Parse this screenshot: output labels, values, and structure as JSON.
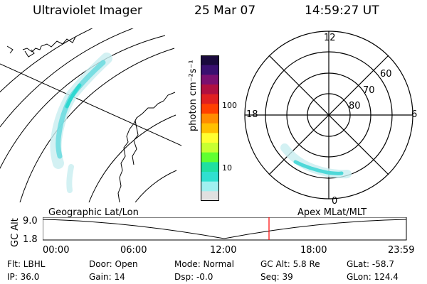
{
  "header": {
    "title": "Ultraviolet Imager",
    "date": "25 Mar 07",
    "time": "14:59:27 UT"
  },
  "colorbar": {
    "label": "photon cm⁻²s⁻¹",
    "ticks": [
      "100",
      "10"
    ],
    "scale": "log",
    "colors": [
      "#1a0a3d",
      "#3a1070",
      "#7a1070",
      "#b01040",
      "#e02020",
      "#ff4000",
      "#ff8c00",
      "#ffc000",
      "#ffff30",
      "#c8ff30",
      "#60ff30",
      "#20e0a0",
      "#30e0d0",
      "#a0f0f0",
      "#e0e0e0"
    ]
  },
  "geo_panel": {
    "label": "Geographic Lat/Lon"
  },
  "polar_panel": {
    "label": "Apex MLat/MLT",
    "mlt_labels": [
      "12",
      "18",
      "6",
      "0"
    ],
    "lat_labels": [
      "60",
      "70",
      "80"
    ]
  },
  "timeline": {
    "axis_label": "GC Alt",
    "y_ticks": [
      "9.0",
      "1.8"
    ],
    "x_ticks": [
      "00:00",
      "06:00",
      "12:00",
      "18:00",
      "23:59"
    ],
    "current_time_marker": "14:59",
    "marker_color": "#ff0000"
  },
  "info": {
    "filter": "Flt: LBHL",
    "door": "Door: Open",
    "mode": "Mode: Normal",
    "gc_alt": "GC Alt: 5.8 Re",
    "glat": "GLat: -58.7",
    "ip": "IP: 36.0",
    "gain": "Gain: 14",
    "dsp": "Dsp:   -0.0",
    "seq": "Seq: 39",
    "glon": "GLon: 124.4"
  }
}
